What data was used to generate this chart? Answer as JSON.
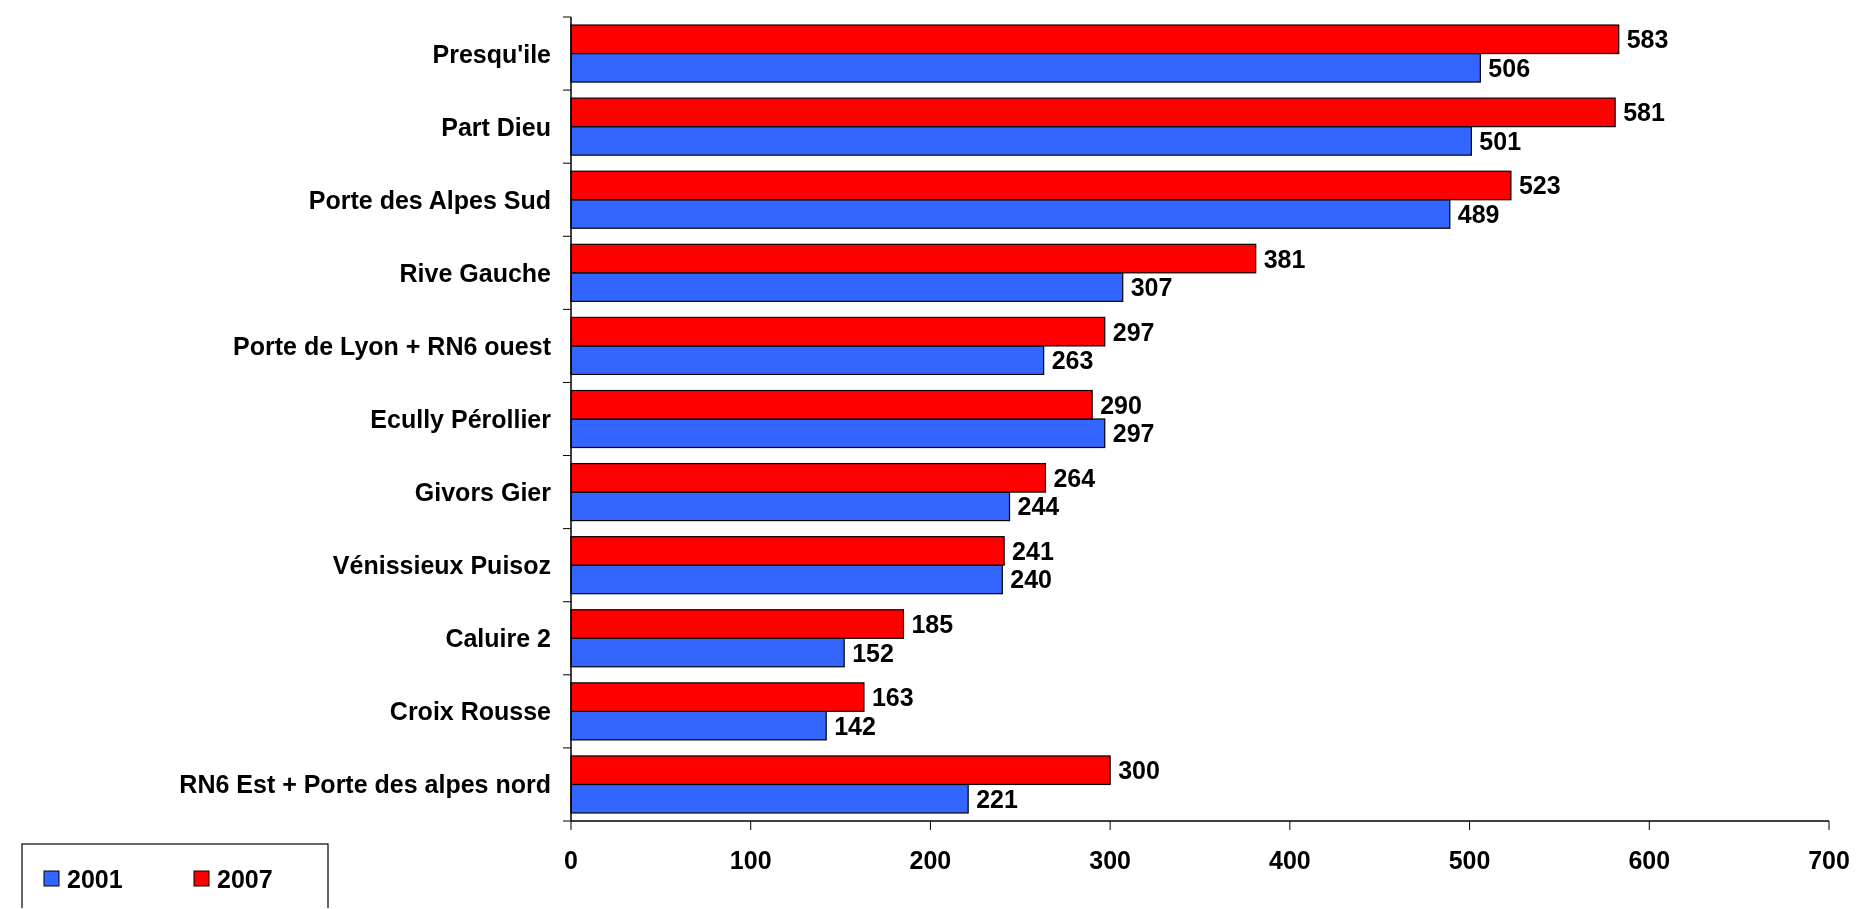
{
  "chart_data": {
    "type": "bar",
    "orientation": "horizontal",
    "categories": [
      "Presqu'ile",
      "Part Dieu",
      "Porte des Alpes Sud",
      "Rive Gauche",
      "Porte de Lyon + RN6 ouest",
      "Ecully Pérollier",
      "Givors Gier",
      "Vénissieux Puisoz",
      "Caluire 2",
      "Croix Rousse",
      "RN6 Est + Porte des alpes nord"
    ],
    "series": [
      {
        "name": "2001",
        "color": "#3366ff",
        "values": [
          506,
          501,
          489,
          307,
          263,
          297,
          244,
          240,
          152,
          142,
          221
        ]
      },
      {
        "name": "2007",
        "color": "#ff0000",
        "values": [
          583,
          581,
          523,
          381,
          297,
          290,
          264,
          241,
          185,
          163,
          300
        ]
      }
    ],
    "xlim": [
      0,
      700
    ],
    "xticks": [
      0,
      100,
      200,
      300,
      400,
      500,
      600,
      700
    ],
    "data_labels": true,
    "legend": "bottom left",
    "grid": false
  }
}
